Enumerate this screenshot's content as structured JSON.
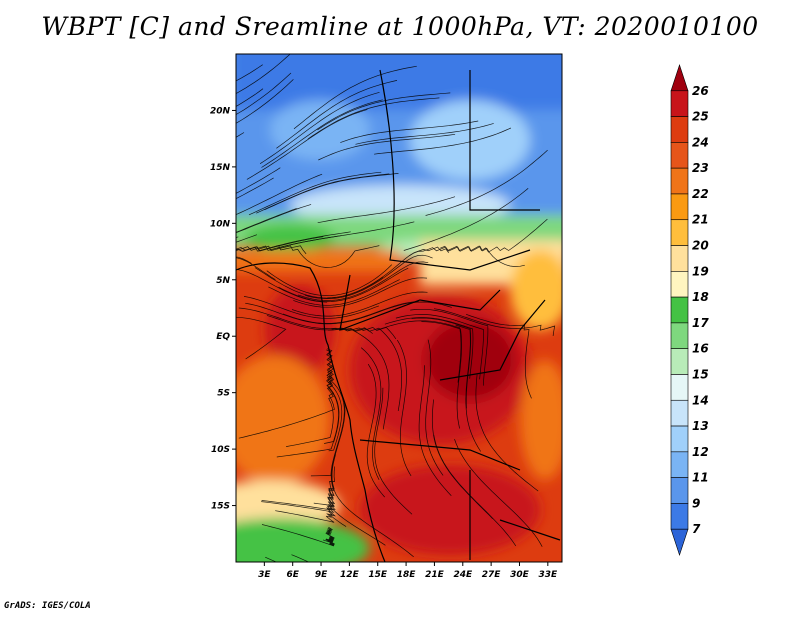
{
  "chart_data": {
    "type": "heatmap",
    "title": "WBPT [C] and Sreamline at 1000hPa, VT: 2020010100",
    "xlabel": "",
    "ylabel": "",
    "x_ticks": [
      "3E",
      "6E",
      "9E",
      "12E",
      "15E",
      "18E",
      "21E",
      "24E",
      "27E",
      "30E",
      "33E"
    ],
    "y_ticks": [
      "20N",
      "15N",
      "10N",
      "5N",
      "EQ",
      "5S",
      "10S",
      "15S"
    ],
    "xlim": [
      0,
      34.5
    ],
    "ylim": [
      -20,
      25
    ],
    "colorbar": {
      "levels": [
        "26",
        "25",
        "24",
        "23",
        "22",
        "21",
        "20",
        "19",
        "18",
        "17",
        "16",
        "15",
        "14",
        "13",
        "12",
        "11",
        "9",
        "7"
      ],
      "colors": [
        "#a0000f",
        "#c8141a",
        "#dd3c10",
        "#e6551a",
        "#f07418",
        "#fa9a12",
        "#ffbe3c",
        "#ffe09c",
        "#fff5c0",
        "#44c244",
        "#7ed87e",
        "#b8ecb8",
        "#e6f7f7",
        "#c8e4fa",
        "#a0d0fa",
        "#7ab4f4",
        "#5a96ec",
        "#3c7ae6",
        "#2c64d8"
      ]
    },
    "overlay": "Streamline",
    "grid": false
  },
  "footer": "GrADS: IGES/COLA"
}
